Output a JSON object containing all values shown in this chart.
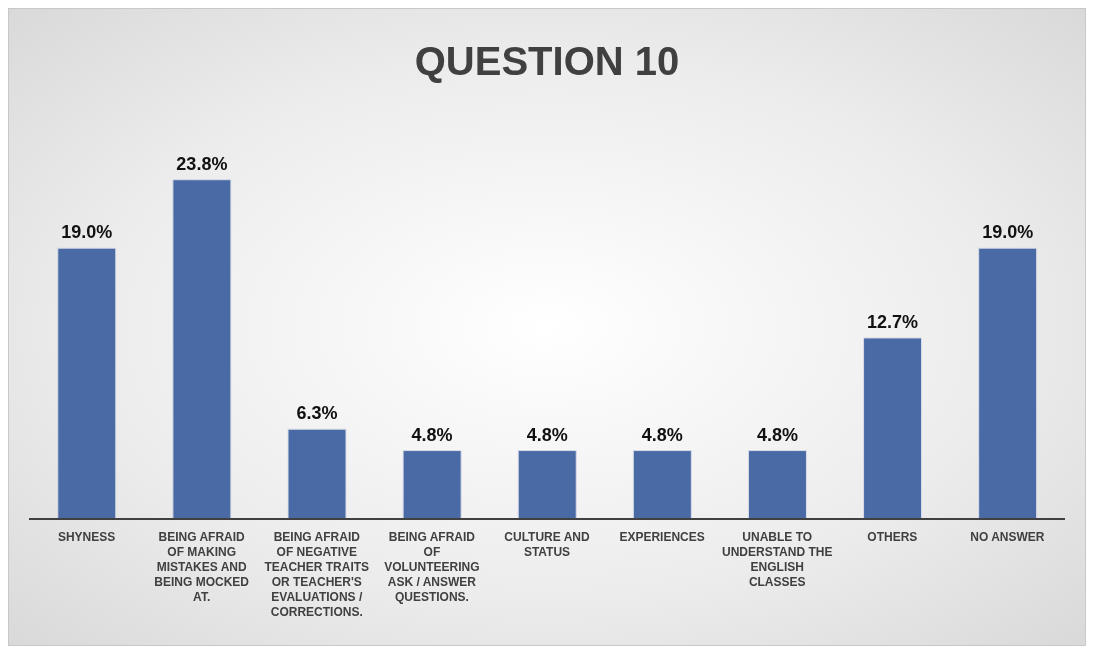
{
  "chart_data": {
    "type": "bar",
    "title": "QUESTION 10",
    "categories": [
      "SHYNESS",
      "BEING AFRAID OF MAKING MISTAKES AND BEING MOCKED AT.",
      "BEING AFRAID OF NEGATIVE TEACHER TRAITS OR TEACHER'S EVALUATIONS / CORRECTIONS.",
      "BEING AFRAID OF VOLUNTEERING ASK / ANSWER QUESTIONS.",
      "CULTURE AND STATUS",
      "EXPERIENCES",
      "UNABLE TO UNDERSTAND THE ENGLISH CLASSES",
      "OTHERS",
      "NO ANSWER"
    ],
    "values": [
      19.0,
      23.8,
      6.3,
      4.8,
      4.8,
      4.8,
      4.8,
      12.7,
      19.0
    ],
    "value_labels": [
      "19.0%",
      "23.8%",
      "6.3%",
      "4.8%",
      "4.8%",
      "4.8%",
      "4.8%",
      "12.7%",
      "19.0%"
    ],
    "color": "#4a6aa6",
    "grid": false,
    "legend": false
  }
}
